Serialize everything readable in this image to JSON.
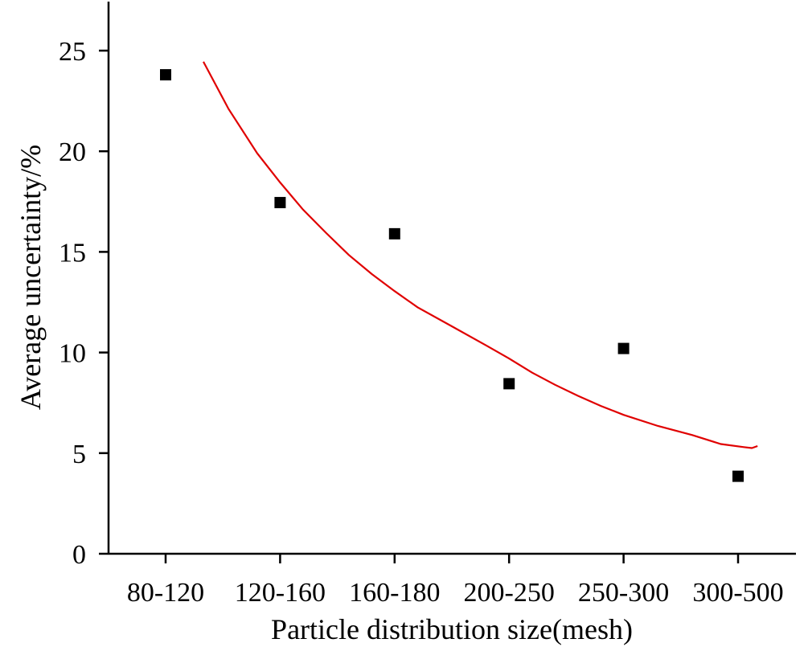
{
  "chart_data": {
    "type": "scatter",
    "xlabel": "Particle distribution size(mesh)",
    "ylabel": "Average uncertainty/%",
    "categories": [
      "80-120",
      "120-160",
      "160-180",
      "200-250",
      "250-300",
      "300-500"
    ],
    "values": [
      23.8,
      17.45,
      15.9,
      8.45,
      10.2,
      3.85
    ],
    "ylim": [
      0,
      27.5
    ],
    "yticks": [
      0,
      5,
      10,
      15,
      20,
      25
    ],
    "grid": false,
    "marker": "square",
    "marker_color": "#000000",
    "fit_curve": {
      "color": "#e00000",
      "points": [
        [
          0.33,
          24.45
        ],
        [
          0.55,
          22.1
        ],
        [
          0.8,
          19.9
        ],
        [
          1.0,
          18.45
        ],
        [
          1.2,
          17.1
        ],
        [
          1.4,
          15.95
        ],
        [
          1.6,
          14.85
        ],
        [
          1.8,
          13.9
        ],
        [
          2.0,
          13.05
        ],
        [
          2.2,
          12.25
        ],
        [
          2.5,
          11.3
        ],
        [
          2.8,
          10.35
        ],
        [
          3.0,
          9.7
        ],
        [
          3.2,
          9.0
        ],
        [
          3.4,
          8.4
        ],
        [
          3.6,
          7.85
        ],
        [
          3.8,
          7.35
        ],
        [
          4.0,
          6.9
        ],
        [
          4.3,
          6.35
        ],
        [
          4.6,
          5.9
        ],
        [
          4.85,
          5.45
        ],
        [
          5.05,
          5.3
        ],
        [
          5.12,
          5.25
        ],
        [
          5.17,
          5.35
        ]
      ]
    }
  }
}
